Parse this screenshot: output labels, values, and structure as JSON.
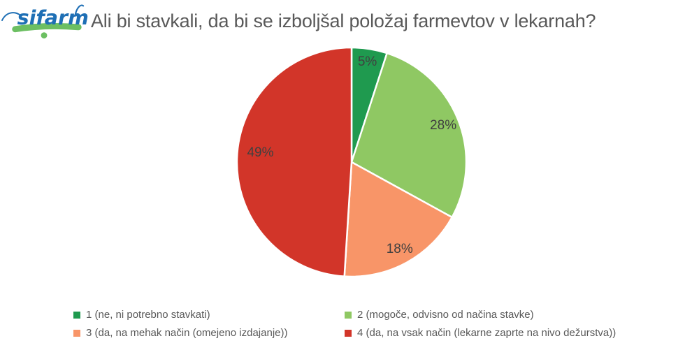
{
  "header": {
    "logo_text": "sifarm",
    "title": "Ali bi stavkali, da bi se izboljšal položaj farmevtov v lekarnah?"
  },
  "chart_data": {
    "type": "pie",
    "title": "Ali bi stavkali, da bi se izboljšal položaj farmevtov v lekarnah?",
    "start_angle_deg": 0,
    "direction": "clockwise",
    "legend_position": "bottom",
    "units": "percent",
    "slices": [
      {
        "label": "1 (ne, ni potrebno stavkati)",
        "value": 5,
        "pct_label": "5%",
        "color": "#1f9a4f"
      },
      {
        "label": "2 (mogoče, odvisno od načina stavke)",
        "value": 28,
        "pct_label": "28%",
        "color": "#8fc863"
      },
      {
        "label": "3 (da, na mehak način (omejeno izdajanje))",
        "value": 18,
        "pct_label": "18%",
        "color": "#f89568"
      },
      {
        "label": "4 (da, na vsak način (lekarne zaprte na nivo dežurstva))",
        "value": 49,
        "pct_label": "49%",
        "color": "#d23529"
      }
    ]
  },
  "colors": {
    "title_text": "#595959",
    "pie_label_text": "#404040",
    "legend_text": "#595959",
    "slice_separator": "#ffffff",
    "logo_blue": "#1e6fb5",
    "logo_green": "#6cbf62"
  }
}
